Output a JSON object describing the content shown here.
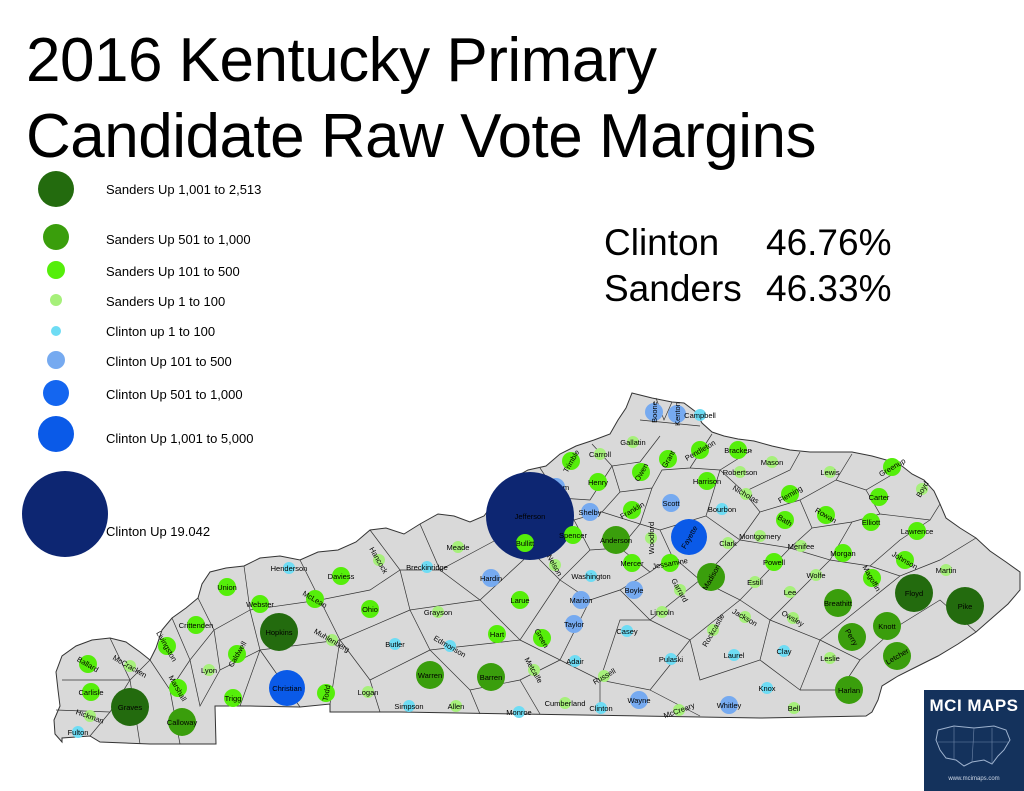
{
  "title": {
    "line1": "2016 Kentucky Primary",
    "line2": "Candidate Raw Vote Margins"
  },
  "legend": [
    {
      "label": "Sanders Up 1,001 to 2,513",
      "color": "#236b0e"
    },
    {
      "label": "Sanders Up 501 to 1,000",
      "color": "#3a9e0c"
    },
    {
      "label": "Sanders Up 101 to 500",
      "color": "#55ee0a"
    },
    {
      "label": "Sanders Up 1 to 100",
      "color": "#a6f07a"
    },
    {
      "label": "Clinton up 1 to 100",
      "color": "#6edcf4"
    },
    {
      "label": "Clinton Up 101 to 500",
      "color": "#76aaf0"
    },
    {
      "label": "Clinton Up 501 to 1,000",
      "color": "#1466f0"
    },
    {
      "label": "Clinton Up 1,001 to 5,000",
      "color": "#0a5ae8"
    },
    {
      "label": "Clinton Up 19.042",
      "color": "#0d2672"
    }
  ],
  "results": [
    {
      "candidate": "Clinton",
      "pct": "46.76%"
    },
    {
      "candidate": "Sanders",
      "pct": "46.33%"
    }
  ],
  "map": {
    "state_fill": "#d9d9d9",
    "border_color": "#333333",
    "counties": [
      {
        "name": "Boone",
        "cat": 5
      },
      {
        "name": "Kenton",
        "cat": 5
      },
      {
        "name": "Campbell",
        "cat": 4
      },
      {
        "name": "Gallatin",
        "cat": 3
      },
      {
        "name": "Carroll",
        "cat": 3
      },
      {
        "name": "Trimble",
        "cat": 2
      },
      {
        "name": "Grant",
        "cat": 2
      },
      {
        "name": "Pendleton",
        "cat": 2
      },
      {
        "name": "Bracken",
        "cat": 2
      },
      {
        "name": "Mason",
        "cat": 3
      },
      {
        "name": "Lewis",
        "cat": 3
      },
      {
        "name": "Greenup",
        "cat": 2
      },
      {
        "name": "Boyd",
        "cat": 3
      },
      {
        "name": "Owen",
        "cat": 2
      },
      {
        "name": "Henry",
        "cat": 2
      },
      {
        "name": "Robertson",
        "cat": 3
      },
      {
        "name": "Harrison",
        "cat": 2
      },
      {
        "name": "Nicholas",
        "cat": 3
      },
      {
        "name": "Fleming",
        "cat": 2
      },
      {
        "name": "Carter",
        "cat": 2
      },
      {
        "name": "Oldham",
        "cat": 5
      },
      {
        "name": "Scott",
        "cat": 5
      },
      {
        "name": "Bourbon",
        "cat": 4
      },
      {
        "name": "Rowan",
        "cat": 2
      },
      {
        "name": "Elliott",
        "cat": 2
      },
      {
        "name": "Lawrence",
        "cat": 2
      },
      {
        "name": "Bath",
        "cat": 2
      },
      {
        "name": "Jefferson",
        "cat": 8
      },
      {
        "name": "Shelby",
        "cat": 5
      },
      {
        "name": "Franklin",
        "cat": 2
      },
      {
        "name": "Woodford",
        "cat": 3
      },
      {
        "name": "Fayette",
        "cat": 7
      },
      {
        "name": "Clark",
        "cat": 3
      },
      {
        "name": "Montgomery",
        "cat": 3
      },
      {
        "name": "Menifee",
        "cat": 3
      },
      {
        "name": "Morgan",
        "cat": 2
      },
      {
        "name": "Johnson",
        "cat": 2
      },
      {
        "name": "Martin",
        "cat": 3
      },
      {
        "name": "Bullitt",
        "cat": 2
      },
      {
        "name": "Spencer",
        "cat": 2
      },
      {
        "name": "Anderson",
        "cat": 1
      },
      {
        "name": "Mercer",
        "cat": 2
      },
      {
        "name": "Jessamine",
        "cat": 2
      },
      {
        "name": "Madison",
        "cat": 1
      },
      {
        "name": "Estill",
        "cat": 3
      },
      {
        "name": "Powell",
        "cat": 2
      },
      {
        "name": "Wolfe",
        "cat": 3
      },
      {
        "name": "Magoffin",
        "cat": 2
      },
      {
        "name": "Floyd",
        "cat": 0
      },
      {
        "name": "Pike",
        "cat": 0
      },
      {
        "name": "Meade",
        "cat": 3
      },
      {
        "name": "Hancock",
        "cat": 3
      },
      {
        "name": "Breckinridge",
        "cat": 4
      },
      {
        "name": "Henderson",
        "cat": 4
      },
      {
        "name": "Daviess",
        "cat": 2
      },
      {
        "name": "Nelson",
        "cat": 3
      },
      {
        "name": "Washington",
        "cat": 4
      },
      {
        "name": "Hardin",
        "cat": 5
      },
      {
        "name": "Boyle",
        "cat": 5
      },
      {
        "name": "Garrard",
        "cat": 3
      },
      {
        "name": "Lee",
        "cat": 3
      },
      {
        "name": "Breathitt",
        "cat": 1
      },
      {
        "name": "Knott",
        "cat": 1
      },
      {
        "name": "Letcher",
        "cat": 1
      },
      {
        "name": "Perry",
        "cat": 1
      },
      {
        "name": "Union",
        "cat": 2
      },
      {
        "name": "Webster",
        "cat": 2
      },
      {
        "name": "McLean",
        "cat": 2
      },
      {
        "name": "Ohio",
        "cat": 2
      },
      {
        "name": "Grayson",
        "cat": 3
      },
      {
        "name": "Larue",
        "cat": 2
      },
      {
        "name": "Marion",
        "cat": 5
      },
      {
        "name": "Lincoln",
        "cat": 3
      },
      {
        "name": "Jackson",
        "cat": 3
      },
      {
        "name": "Owsley",
        "cat": 3
      },
      {
        "name": "Crittenden",
        "cat": 2
      },
      {
        "name": "Hopkins",
        "cat": 0
      },
      {
        "name": "Muhlenberg",
        "cat": 3
      },
      {
        "name": "Taylor",
        "cat": 5
      },
      {
        "name": "Casey",
        "cat": 4
      },
      {
        "name": "Rockcastle",
        "cat": 3
      },
      {
        "name": "Hart",
        "cat": 2
      },
      {
        "name": "Green",
        "cat": 2
      },
      {
        "name": "Livingston",
        "cat": 2
      },
      {
        "name": "Caldwell",
        "cat": 2
      },
      {
        "name": "Butler",
        "cat": 4
      },
      {
        "name": "Edmonson",
        "cat": 4
      },
      {
        "name": "Adair",
        "cat": 4
      },
      {
        "name": "Pulaski",
        "cat": 4
      },
      {
        "name": "Laurel",
        "cat": 4
      },
      {
        "name": "Clay",
        "cat": 4
      },
      {
        "name": "Leslie",
        "cat": 3
      },
      {
        "name": "Ballard",
        "cat": 2
      },
      {
        "name": "McCracken",
        "cat": 3
      },
      {
        "name": "Lyon",
        "cat": 3
      },
      {
        "name": "Marshall",
        "cat": 2
      },
      {
        "name": "Trigg",
        "cat": 2
      },
      {
        "name": "Christian",
        "cat": 7
      },
      {
        "name": "Todd",
        "cat": 2
      },
      {
        "name": "Logan",
        "cat": 3
      },
      {
        "name": "Warren",
        "cat": 1
      },
      {
        "name": "Barren",
        "cat": 1
      },
      {
        "name": "Metcalfe",
        "cat": 3
      },
      {
        "name": "Russell",
        "cat": 3
      },
      {
        "name": "Knox",
        "cat": 4
      },
      {
        "name": "Harlan",
        "cat": 1
      },
      {
        "name": "Carlisle",
        "cat": 2
      },
      {
        "name": "Graves",
        "cat": 0
      },
      {
        "name": "Calloway",
        "cat": 1
      },
      {
        "name": "Hickman",
        "cat": 3
      },
      {
        "name": "Fulton",
        "cat": 4
      },
      {
        "name": "Simpson",
        "cat": 4
      },
      {
        "name": "Allen",
        "cat": 3
      },
      {
        "name": "Monroe",
        "cat": 4
      },
      {
        "name": "Cumberland",
        "cat": 3
      },
      {
        "name": "Clinton",
        "cat": 4
      },
      {
        "name": "Wayne",
        "cat": 5
      },
      {
        "name": "McCreary",
        "cat": 3
      },
      {
        "name": "Whitley",
        "cat": 5
      },
      {
        "name": "Bell",
        "cat": 3
      }
    ]
  },
  "logo": {
    "text": "MCI MAPS",
    "url": "www.mcimaps.com",
    "icon": "usa-map-icon"
  }
}
